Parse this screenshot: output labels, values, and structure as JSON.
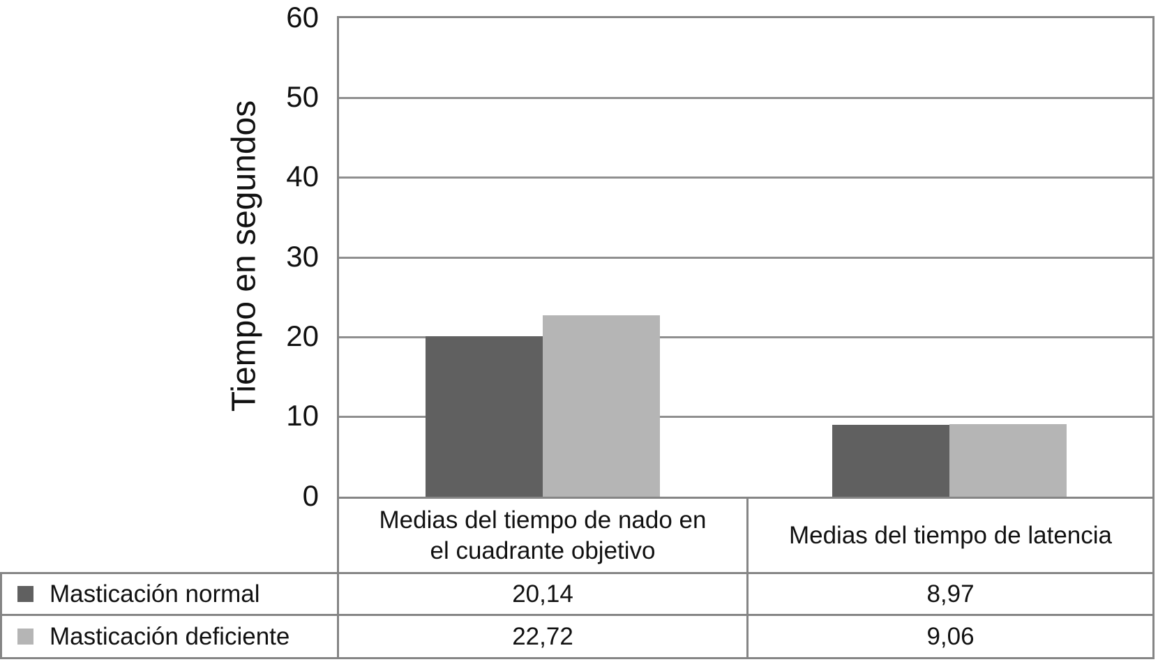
{
  "chart_data": {
    "type": "bar",
    "title": "",
    "ylabel": "Tiempo en segundos",
    "xlabel": "",
    "ylim": [
      0,
      60
    ],
    "yticks": [
      0,
      10,
      20,
      30,
      40,
      50,
      60
    ],
    "grid": true,
    "legend_position": "table-left",
    "categories": [
      "Medias del tiempo de nado en\nel cuadrante objetivo",
      "Medias del tiempo de latencia"
    ],
    "series": [
      {
        "name": "Masticación normal",
        "values": [
          20.14,
          8.97
        ]
      },
      {
        "name": "Masticación deficiente",
        "values": [
          22.72,
          9.06
        ]
      }
    ],
    "value_labels": [
      [
        "20,14",
        "8,97"
      ],
      [
        "22,72",
        "9,06"
      ]
    ],
    "series_colors": [
      "#606060",
      "#b5b5b5"
    ],
    "decimal_separator": ","
  }
}
